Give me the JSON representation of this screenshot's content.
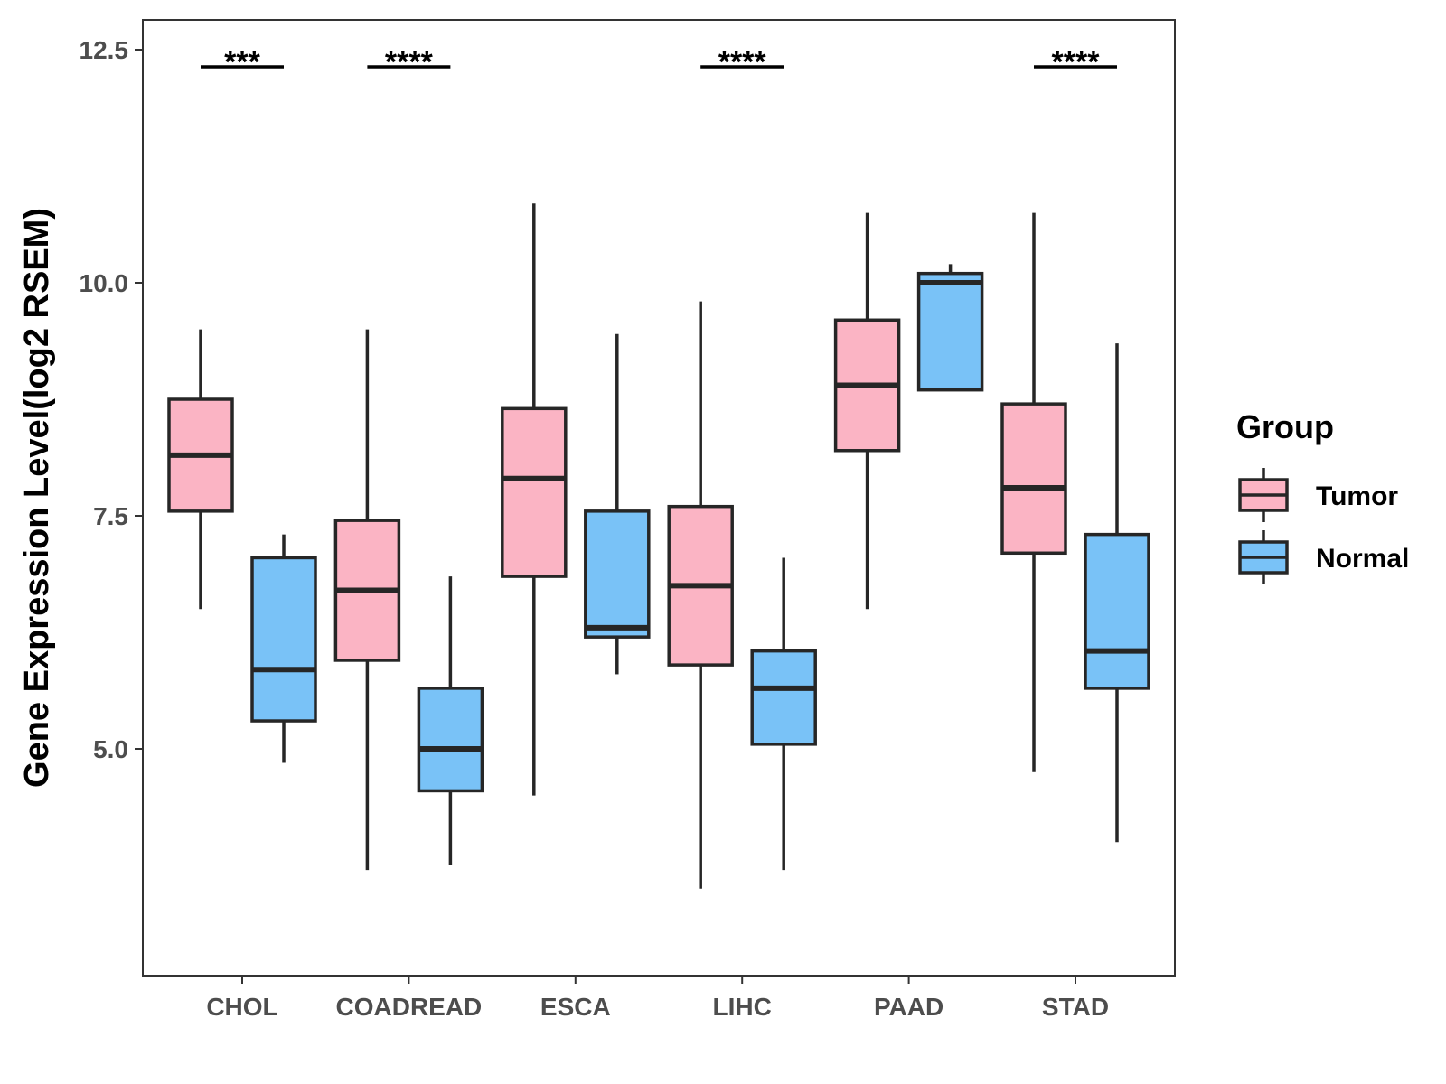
{
  "chart_data": {
    "type": "boxplot",
    "title": "",
    "xlabel": "",
    "ylabel": "Gene Expression Level(log2 RSEM)",
    "ylim": [
      2.5,
      12.7
    ],
    "yticks": [
      5.0,
      7.5,
      10.0,
      12.5
    ],
    "ytick_labels": [
      "5.0",
      "7.5",
      "10.0",
      "12.5"
    ],
    "categories": [
      "CHOL",
      "COADREAD",
      "ESCA",
      "LIHC",
      "PAAD",
      "STAD"
    ],
    "legend": {
      "title": "Group",
      "position": "right",
      "entries": [
        {
          "name": "Tumor",
          "color": "#fbb4c4"
        },
        {
          "name": "Normal",
          "color": "#79c2f7"
        }
      ]
    },
    "series": [
      {
        "name": "Tumor",
        "color": "#fbb4c4",
        "boxes": [
          {
            "category": "CHOL",
            "min": 6.5,
            "q1": 7.55,
            "median": 8.15,
            "q3": 8.75,
            "max": 9.5
          },
          {
            "category": "COADREAD",
            "min": 3.7,
            "q1": 5.95,
            "median": 6.7,
            "q3": 7.45,
            "max": 9.5
          },
          {
            "category": "ESCA",
            "min": 4.5,
            "q1": 6.85,
            "median": 7.9,
            "q3": 8.65,
            "max": 10.85
          },
          {
            "category": "LIHC",
            "min": 3.5,
            "q1": 5.9,
            "median": 6.75,
            "q3": 7.6,
            "max": 9.8
          },
          {
            "category": "PAAD",
            "min": 6.5,
            "q1": 8.2,
            "median": 8.9,
            "q3": 9.6,
            "max": 10.75
          },
          {
            "category": "STAD",
            "min": 4.75,
            "q1": 7.1,
            "median": 7.8,
            "q3": 8.7,
            "max": 10.75
          }
        ]
      },
      {
        "name": "Normal",
        "color": "#79c2f7",
        "boxes": [
          {
            "category": "CHOL",
            "min": 4.85,
            "q1": 5.3,
            "median": 5.85,
            "q3": 7.05,
            "max": 7.3
          },
          {
            "category": "COADREAD",
            "min": 3.75,
            "q1": 4.55,
            "median": 5.0,
            "q3": 5.65,
            "max": 6.85
          },
          {
            "category": "ESCA",
            "min": 5.8,
            "q1": 6.2,
            "median": 6.3,
            "q3": 7.55,
            "max": 9.45
          },
          {
            "category": "LIHC",
            "min": 3.7,
            "q1": 5.05,
            "median": 5.65,
            "q3": 6.05,
            "max": 7.05
          },
          {
            "category": "PAAD",
            "min": 8.85,
            "q1": 8.85,
            "median": 10.0,
            "q3": 10.1,
            "max": 10.2
          },
          {
            "category": "STAD",
            "min": 4.0,
            "q1": 5.65,
            "median": 6.05,
            "q3": 7.3,
            "max": 9.35
          }
        ]
      }
    ],
    "significance": [
      {
        "category": "CHOL",
        "label": "***"
      },
      {
        "category": "COADREAD",
        "label": "****"
      },
      {
        "category": "LIHC",
        "label": "****"
      },
      {
        "category": "STAD",
        "label": "****"
      }
    ]
  }
}
